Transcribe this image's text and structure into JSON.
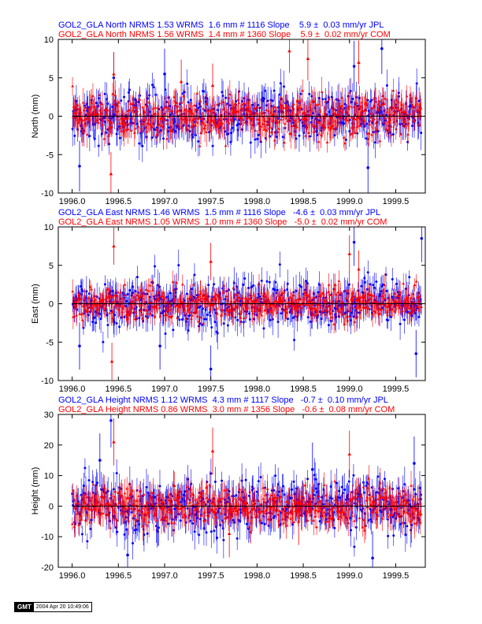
{
  "headers": {
    "north": {
      "jpl": "GOL2_GLA North NRMS 1.53 WRMS  1.6 mm # 1116 Slope    5.9 ±  0.03 mm/yr JPL",
      "com": "GOL2_GLA North NRMS 1.56 WRMS  1.4 mm # 1360 Slope    5.9 ±  0.02 mm/yr COM"
    },
    "east": {
      "jpl": "GOL2_GLA East NRMS 1.46 WRMS  1.5 mm # 1116 Slope   -4.6 ±  0.03 mm/yr JPL",
      "com": "GOL2_GLA East NRMS 1.05 WRMS  1.0 mm # 1360 Slope   -5.0 ±  0.02 mm/yr COM"
    },
    "height": {
      "jpl": "GOL2_GLA Height NRMS 1.12 WRMS  4.3 mm # 1117 Slope   -0.7 ±  0.10 mm/yr JPL",
      "com": "GOL2_GLA Height NRMS 0.86 WRMS  3.0 mm # 1356 Slope   -0.6 ±  0.08 mm/yr COM"
    }
  },
  "colors": {
    "jpl": "#0000ff",
    "com": "#ff0000",
    "zero_line": "#000000"
  },
  "footer": {
    "logo": "GMT",
    "timestamp": "2004 Apr 20 10:49:06"
  },
  "chart_data": [
    {
      "type": "scatter",
      "id": "north",
      "title": "",
      "xlabel": "",
      "ylabel": "North (mm)",
      "xlim": [
        1995.85,
        1999.82
      ],
      "ylim": [
        -10,
        10
      ],
      "x_ticks": [
        1996.0,
        1996.5,
        1997.0,
        1997.5,
        1998.0,
        1998.5,
        1999.0,
        1999.5
      ],
      "x_tick_labels": [
        "1996.0",
        "1996.5",
        "1997.0",
        "1997.5",
        "1998.0",
        "1998.5",
        "1999.0",
        "1999.5"
      ],
      "y_ticks": [
        -10,
        -5,
        0,
        5,
        10
      ],
      "y_tick_labels": [
        "-10",
        "-5",
        "0",
        "5",
        "10"
      ],
      "x_range": [
        1996.0,
        1999.78
      ],
      "series": [
        {
          "name": "JPL",
          "color": "#0000ff",
          "count": 1116,
          "rms": 1.6,
          "errbar": 1.5,
          "outliers": [
            [
              1996.45,
              5.0
            ],
            [
              1996.08,
              -6.5
            ],
            [
              1999.2,
              -6.7
            ],
            [
              1999.05,
              6.5
            ],
            [
              1999.35,
              8.8
            ],
            [
              1997.0,
              5.5
            ]
          ]
        },
        {
          "name": "COM",
          "color": "#ff0000",
          "count": 1360,
          "rms": 1.4,
          "errbar": 1.3,
          "outliers": [
            [
              1996.45,
              5.5
            ],
            [
              1996.42,
              -7.5
            ],
            [
              1998.35,
              8.5
            ],
            [
              1998.55,
              7.5
            ],
            [
              1999.1,
              7.0
            ],
            [
              1997.18,
              4.5
            ],
            [
              1997.52,
              4.0
            ]
          ]
        }
      ]
    },
    {
      "type": "scatter",
      "id": "east",
      "title": "",
      "xlabel": "",
      "ylabel": "East (mm)",
      "xlim": [
        1995.85,
        1999.82
      ],
      "ylim": [
        -10,
        10
      ],
      "x_ticks": [
        1996.0,
        1996.5,
        1997.0,
        1997.5,
        1998.0,
        1998.5,
        1999.0,
        1999.5
      ],
      "x_tick_labels": [
        "1996.0",
        "1996.5",
        "1997.0",
        "1997.5",
        "1998.0",
        "1998.5",
        "1999.0",
        "1999.5"
      ],
      "y_ticks": [
        -10,
        -5,
        0,
        5,
        10
      ],
      "y_tick_labels": [
        "-10",
        "-5",
        "0",
        "5",
        "10"
      ],
      "x_range": [
        1996.0,
        1999.78
      ],
      "series": [
        {
          "name": "JPL",
          "color": "#0000ff",
          "count": 1116,
          "rms": 1.5,
          "errbar": 1.4,
          "outliers": [
            [
              1996.08,
              -5.5
            ],
            [
              1997.5,
              -8.5
            ],
            [
              1999.78,
              8.5
            ],
            [
              1999.72,
              -6.5
            ],
            [
              1999.05,
              8.0
            ],
            [
              1996.95,
              -5.5
            ]
          ]
        },
        {
          "name": "COM",
          "color": "#ff0000",
          "count": 1360,
          "rms": 1.0,
          "errbar": 1.1,
          "outliers": [
            [
              1996.43,
              -7.5
            ],
            [
              1996.45,
              7.5
            ],
            [
              1997.5,
              5.5
            ],
            [
              1999.0,
              6.5
            ],
            [
              1999.1,
              4.5
            ]
          ]
        }
      ]
    },
    {
      "type": "scatter",
      "id": "height",
      "title": "",
      "xlabel": "",
      "ylabel": "Height (mm)",
      "xlim": [
        1995.85,
        1999.82
      ],
      "ylim": [
        -20,
        30
      ],
      "x_ticks": [
        1996.0,
        1996.5,
        1997.0,
        1997.5,
        1998.0,
        1998.5,
        1999.0,
        1999.5
      ],
      "x_tick_labels": [
        "1996.0",
        "1996.5",
        "1997.0",
        "1997.5",
        "1998.0",
        "1998.5",
        "1999.0",
        "1999.5"
      ],
      "y_ticks": [
        -20,
        -10,
        0,
        10,
        20,
        30
      ],
      "y_tick_labels": [
        "-20",
        "-10",
        "0",
        "10",
        "20",
        "30"
      ],
      "x_range": [
        1996.0,
        1999.78
      ],
      "series": [
        {
          "name": "JPL",
          "color": "#0000ff",
          "count": 1117,
          "rms": 4.3,
          "errbar": 4.0,
          "outliers": [
            [
              1996.42,
              28.0
            ],
            [
              1999.25,
              -17.0
            ],
            [
              1996.6,
              -16.0
            ],
            [
              1996.3,
              15.0
            ],
            [
              1998.6,
              12.0
            ],
            [
              1999.7,
              14.0
            ]
          ]
        },
        {
          "name": "COM",
          "color": "#ff0000",
          "count": 1356,
          "rms": 3.0,
          "errbar": 3.5,
          "outliers": [
            [
              1996.45,
              21.0
            ],
            [
              1997.52,
              18.0
            ],
            [
              1999.0,
              17.0
            ],
            [
              1998.45,
              -5.0
            ],
            [
              1997.7,
              -9.0
            ]
          ]
        }
      ]
    }
  ]
}
